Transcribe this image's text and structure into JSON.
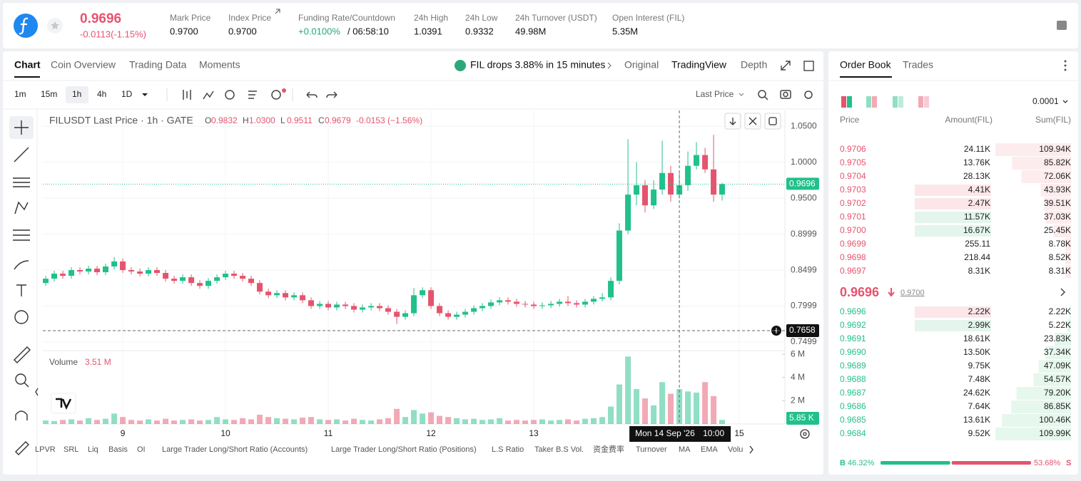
{
  "header": {
    "last_price": "0.9696",
    "change": "-0.0113(-1.15%)",
    "stats": [
      {
        "label": "Mark Price",
        "value": "0.9700"
      },
      {
        "label": "Index Price",
        "value": "0.9700"
      },
      {
        "label": "Funding Rate/Countdown",
        "value": "+0.0100%",
        "extra": "/ 06:58:10"
      },
      {
        "label": "24h High",
        "value": "1.0391"
      },
      {
        "label": "24h Low",
        "value": "0.9332"
      },
      {
        "label": "24h Turnover (USDT)",
        "value": "49.98M"
      },
      {
        "label": "Open Interest (FIL)",
        "value": "5.35M"
      }
    ]
  },
  "tabs": [
    "Chart",
    "Coin Overview",
    "Trading Data",
    "Moments"
  ],
  "news": "FIL drops 3.88% in 15 minutes",
  "views": [
    "Original",
    "TradingView",
    "Depth"
  ],
  "intervals": [
    "1m",
    "15m",
    "1h",
    "4h",
    "1D"
  ],
  "price_source": "Last Price",
  "chart_data": {
    "type": "candlestick",
    "title": "FILUSDT Last Price · 1h · GATE",
    "legend": [
      {
        "key": "O",
        "value": "0.9832"
      },
      {
        "key": "H",
        "value": "1.0300"
      },
      {
        "key": "L",
        "value": "0.9511"
      },
      {
        "key": "C",
        "value": "0.9679"
      }
    ],
    "legend_change": "-0.0153 (−1.56%)",
    "colors": {
      "up": "#22c08a",
      "down": "#e5546e"
    },
    "x": [
      8.25,
      8.333,
      8.417,
      8.5,
      8.583,
      8.667,
      8.75,
      8.833,
      8.917,
      9,
      9.083,
      9.167,
      9.25,
      9.333,
      9.417,
      9.5,
      9.583,
      9.667,
      9.75,
      9.833,
      9.917,
      10,
      10.083,
      10.167,
      10.25,
      10.333,
      10.417,
      10.5,
      10.583,
      10.667,
      10.75,
      10.833,
      10.917,
      11,
      11.083,
      11.167,
      11.25,
      11.333,
      11.417,
      11.5,
      11.583,
      11.667,
      11.75,
      11.833,
      11.917,
      12,
      12.083,
      12.167,
      12.25,
      12.333,
      12.417,
      12.5,
      12.583,
      12.667,
      12.75,
      12.833,
      12.917,
      13,
      13.083,
      13.167,
      13.25,
      13.333,
      13.417,
      13.5,
      13.583,
      13.667,
      13.75,
      13.833,
      13.917,
      14,
      14.083,
      14.167,
      14.25,
      14.333,
      14.417,
      14.5,
      14.583,
      14.667,
      14.75,
      14.833
    ],
    "candles": [
      [
        0.832,
        0.842,
        0.828,
        0.838
      ],
      [
        0.838,
        0.849,
        0.834,
        0.845
      ],
      [
        0.845,
        0.849,
        0.838,
        0.842
      ],
      [
        0.842,
        0.854,
        0.838,
        0.85
      ],
      [
        0.85,
        0.854,
        0.844,
        0.848
      ],
      [
        0.848,
        0.856,
        0.844,
        0.852
      ],
      [
        0.852,
        0.856,
        0.843,
        0.847
      ],
      [
        0.847,
        0.859,
        0.843,
        0.855
      ],
      [
        0.855,
        0.868,
        0.851,
        0.862
      ],
      [
        0.862,
        0.866,
        0.846,
        0.85
      ],
      [
        0.85,
        0.854,
        0.844,
        0.848
      ],
      [
        0.848,
        0.852,
        0.841,
        0.845
      ],
      [
        0.845,
        0.854,
        0.841,
        0.85
      ],
      [
        0.85,
        0.854,
        0.842,
        0.846
      ],
      [
        0.846,
        0.85,
        0.834,
        0.838
      ],
      [
        0.838,
        0.842,
        0.831,
        0.835
      ],
      [
        0.835,
        0.844,
        0.831,
        0.84
      ],
      [
        0.84,
        0.844,
        0.828,
        0.832
      ],
      [
        0.832,
        0.836,
        0.824,
        0.828
      ],
      [
        0.828,
        0.839,
        0.824,
        0.835
      ],
      [
        0.835,
        0.844,
        0.831,
        0.84
      ],
      [
        0.84,
        0.849,
        0.836,
        0.845
      ],
      [
        0.845,
        0.849,
        0.838,
        0.842
      ],
      [
        0.842,
        0.846,
        0.834,
        0.838
      ],
      [
        0.838,
        0.842,
        0.828,
        0.832
      ],
      [
        0.832,
        0.836,
        0.816,
        0.82
      ],
      [
        0.82,
        0.824,
        0.811,
        0.815
      ],
      [
        0.815,
        0.822,
        0.811,
        0.818
      ],
      [
        0.818,
        0.822,
        0.808,
        0.812
      ],
      [
        0.812,
        0.819,
        0.808,
        0.815
      ],
      [
        0.815,
        0.819,
        0.804,
        0.808
      ],
      [
        0.808,
        0.812,
        0.796,
        0.8
      ],
      [
        0.8,
        0.807,
        0.796,
        0.803
      ],
      [
        0.803,
        0.807,
        0.794,
        0.798
      ],
      [
        0.798,
        0.806,
        0.794,
        0.802
      ],
      [
        0.802,
        0.806,
        0.796,
        0.8
      ],
      [
        0.8,
        0.804,
        0.791,
        0.795
      ],
      [
        0.795,
        0.802,
        0.791,
        0.798
      ],
      [
        0.798,
        0.804,
        0.794,
        0.8
      ],
      [
        0.8,
        0.804,
        0.793,
        0.797
      ],
      [
        0.797,
        0.801,
        0.788,
        0.792
      ],
      [
        0.792,
        0.796,
        0.775,
        0.785
      ],
      [
        0.785,
        0.794,
        0.781,
        0.79
      ],
      [
        0.79,
        0.825,
        0.786,
        0.815
      ],
      [
        0.815,
        0.826,
        0.811,
        0.822
      ],
      [
        0.822,
        0.826,
        0.796,
        0.8
      ],
      [
        0.8,
        0.804,
        0.786,
        0.79
      ],
      [
        0.79,
        0.794,
        0.781,
        0.785
      ],
      [
        0.785,
        0.792,
        0.781,
        0.788
      ],
      [
        0.788,
        0.796,
        0.784,
        0.792
      ],
      [
        0.792,
        0.801,
        0.788,
        0.797
      ],
      [
        0.797,
        0.804,
        0.793,
        0.8
      ],
      [
        0.8,
        0.809,
        0.796,
        0.805
      ],
      [
        0.805,
        0.812,
        0.801,
        0.808
      ],
      [
        0.808,
        0.812,
        0.802,
        0.806
      ],
      [
        0.806,
        0.81,
        0.799,
        0.803
      ],
      [
        0.803,
        0.807,
        0.798,
        0.802
      ],
      [
        0.802,
        0.806,
        0.796,
        0.8
      ],
      [
        0.8,
        0.805,
        0.796,
        0.801
      ],
      [
        0.801,
        0.807,
        0.797,
        0.803
      ],
      [
        0.803,
        0.81,
        0.799,
        0.806
      ],
      [
        0.806,
        0.814,
        0.8,
        0.804
      ],
      [
        0.804,
        0.808,
        0.798,
        0.802
      ],
      [
        0.802,
        0.81,
        0.798,
        0.806
      ],
      [
        0.806,
        0.814,
        0.802,
        0.81
      ],
      [
        0.81,
        0.818,
        0.806,
        0.812
      ],
      [
        0.812,
        0.84,
        0.808,
        0.835
      ],
      [
        0.835,
        0.915,
        0.83,
        0.905
      ],
      [
        0.905,
        1.032,
        0.9,
        0.955
      ],
      [
        0.955,
        1,
        0.94,
        0.968
      ],
      [
        0.968,
        0.975,
        0.93,
        0.94
      ],
      [
        0.94,
        0.975,
        0.935,
        0.962
      ],
      [
        0.962,
        1.03,
        0.955,
        0.985
      ],
      [
        0.985,
        0.995,
        0.945,
        0.955
      ],
      [
        0.955,
        0.985,
        0.95,
        0.968
      ],
      [
        0.968,
        1.015,
        0.96,
        0.995
      ],
      [
        0.995,
        1.028,
        0.99,
        1.01
      ],
      [
        1.01,
        1.02,
        0.985,
        0.99
      ],
      [
        0.99,
        1.038,
        0.945,
        0.955
      ],
      [
        0.955,
        0.9712,
        0.9467,
        0.9696
      ]
    ],
    "xlim": [
      8.222,
      15.444
    ],
    "xticks": [
      9,
      10,
      11,
      12,
      13,
      15
    ],
    "ylim": [
      0.738,
      1.072
    ],
    "yticks": [
      {
        "value": 1.05,
        "label": "1.0500"
      },
      {
        "value": 1,
        "label": "1.0000"
      },
      {
        "value": 0.95,
        "label": "0.9500"
      },
      0.8999,
      0.8499,
      0.7999,
      0.7499
    ],
    "last_price": 0.9696,
    "crosshair": {
      "x": 14.417,
      "date": "Mon 14 Sep '26",
      "time": "10:00",
      "price": 0.7658
    },
    "volume": {
      "title": "Volume",
      "current": "3.51 M",
      "values": [
        0.3,
        0.25,
        0.35,
        0.4,
        0.3,
        0.5,
        0.35,
        0.45,
        0.9,
        0.6,
        0.35,
        0.3,
        0.4,
        0.3,
        0.45,
        0.3,
        0.35,
        0.4,
        0.3,
        0.35,
        0.6,
        0.4,
        0.35,
        0.5,
        0.4,
        0.8,
        0.6,
        0.5,
        0.45,
        0.4,
        0.55,
        0.6,
        0.4,
        0.35,
        0.4,
        0.3,
        0.45,
        0.35,
        0.3,
        0.4,
        0.5,
        1.3,
        0.6,
        1.2,
        0.9,
        1,
        0.7,
        0.6,
        0.5,
        0.4,
        0.45,
        0.35,
        0.4,
        0.5,
        0.3,
        0.35,
        0.3,
        0.35,
        0.4,
        0.3,
        0.35,
        0.4,
        0.3,
        0.45,
        0.5,
        0.6,
        1.5,
        3.4,
        5.8,
        3,
        2.2,
        1.6,
        3.6,
        2.6,
        3,
        2.8,
        2.7,
        3.6,
        2.4,
        0.35
      ],
      "ylim": [
        0,
        6.25
      ],
      "yticks": [
        {
          "value": 6,
          "label": "6 M"
        },
        {
          "value": 4,
          "label": "4 M"
        },
        {
          "value": 2,
          "label": "2 M"
        }
      ],
      "last": "5.85 K"
    }
  },
  "indicators": [
    "LPVR",
    "SRL",
    "Liq",
    "Basis",
    "OI",
    "Large Trader Long/Short Ratio (Accounts)",
    "Large Trader Long/Short Ratio (Positions)",
    "L.S Ratio",
    "Taker B.S Vol.",
    "资金费率",
    "Turnover",
    "MA",
    "EMA",
    "Volu"
  ],
  "order_book": {
    "tabs": [
      "Order Book",
      "Trades"
    ],
    "precision": "0.0001",
    "columns": [
      "Price",
      "Amount(FIL)",
      "Sum(FIL)"
    ],
    "asks": [
      {
        "price": "0.9706",
        "amount": "24.11K",
        "sum": "109.94K"
      },
      {
        "price": "0.9705",
        "amount": "13.76K",
        "sum": "85.82K"
      },
      {
        "price": "0.9704",
        "amount": "28.13K",
        "sum": "72.06K"
      },
      {
        "price": "0.9703",
        "amount": "4.41K",
        "sum": "43.93K"
      },
      {
        "price": "0.9702",
        "amount": "2.47K",
        "sum": "39.51K"
      },
      {
        "price": "0.9701",
        "amount": "11.57K",
        "sum": "37.03K"
      },
      {
        "price": "0.9700",
        "amount": "16.67K",
        "sum": "25.45K"
      },
      {
        "price": "0.9699",
        "amount": "255.11",
        "sum": "8.78K"
      },
      {
        "price": "0.9698",
        "amount": "218.44",
        "sum": "8.52K"
      },
      {
        "price": "0.9697",
        "amount": "8.31K",
        "sum": "8.31K"
      }
    ],
    "mid": {
      "price": "0.9696",
      "index": "0.9700"
    },
    "bids": [
      {
        "price": "0.9696",
        "amount": "2.22K",
        "sum": "2.22K"
      },
      {
        "price": "0.9692",
        "amount": "2.99K",
        "sum": "5.22K"
      },
      {
        "price": "0.9691",
        "amount": "18.61K",
        "sum": "23.83K"
      },
      {
        "price": "0.9690",
        "amount": "13.50K",
        "sum": "37.34K"
      },
      {
        "price": "0.9689",
        "amount": "9.75K",
        "sum": "47.09K"
      },
      {
        "price": "0.9688",
        "amount": "7.48K",
        "sum": "54.57K"
      },
      {
        "price": "0.9687",
        "amount": "24.62K",
        "sum": "79.20K"
      },
      {
        "price": "0.9686",
        "amount": "7.64K",
        "sum": "86.85K"
      },
      {
        "price": "0.9685",
        "amount": "13.61K",
        "sum": "100.46K"
      },
      {
        "price": "0.9684",
        "amount": "9.52K",
        "sum": "109.99K"
      }
    ],
    "ratio": {
      "buy_key": "B",
      "buy": {
        "value": 46.32,
        "label": "46.32%"
      },
      "sell": {
        "value": 53.68,
        "label": "53.68%"
      },
      "sell_key": "S"
    }
  }
}
